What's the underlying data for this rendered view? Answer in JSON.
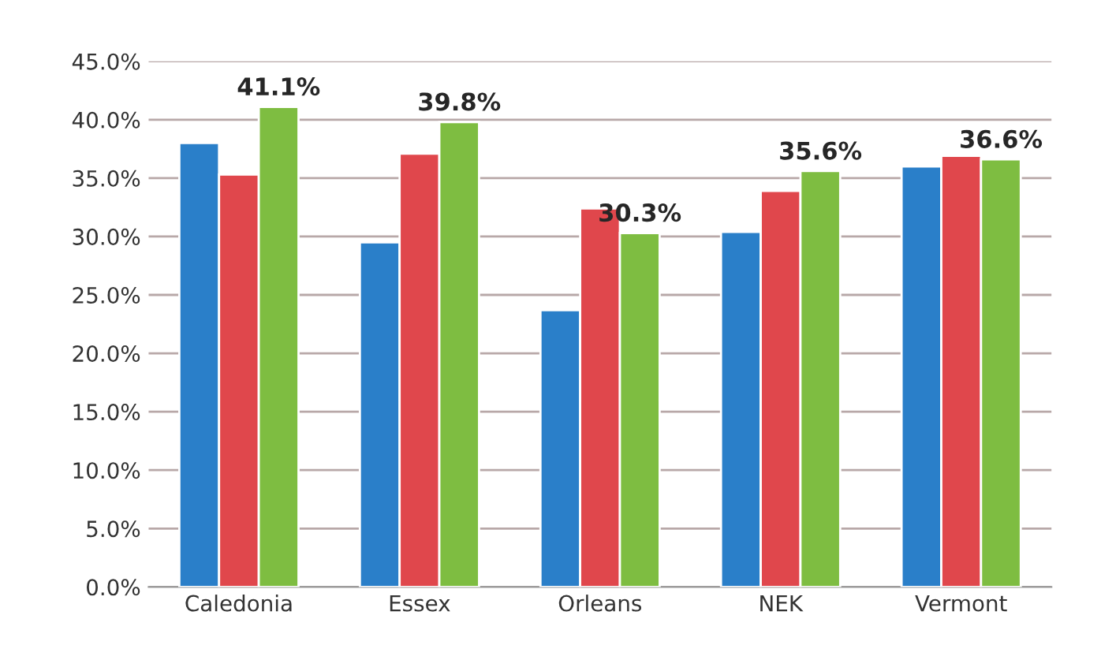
{
  "chart_data": {
    "type": "bar",
    "categories": [
      "Caledonia",
      "Essex",
      "Orleans",
      "NEK",
      "Vermont"
    ],
    "series": [
      {
        "color": "#2a7fc9",
        "values": [
          38.0,
          29.5,
          23.7,
          30.4,
          36.0
        ]
      },
      {
        "color": "#e0474c",
        "values": [
          35.3,
          37.1,
          32.4,
          33.9,
          36.9
        ]
      },
      {
        "color": "#7ebd41",
        "values": [
          41.1,
          39.8,
          30.3,
          35.6,
          36.6
        ],
        "value_labels": [
          "41.1%",
          "39.8%",
          "30.3%",
          "35.6%",
          "36.6%"
        ]
      }
    ],
    "ylim": [
      0,
      45
    ],
    "yticks": [
      {
        "value": 0,
        "label": "0.0%"
      },
      {
        "value": 5,
        "label": "5.0%"
      },
      {
        "value": 10,
        "label": "10.0%"
      },
      {
        "value": 15,
        "label": "15.0%"
      },
      {
        "value": 20,
        "label": "20.0%"
      },
      {
        "value": 25,
        "label": "25.0%"
      },
      {
        "value": 30,
        "label": "30.0%"
      },
      {
        "value": 35,
        "label": "35.0%"
      },
      {
        "value": 40,
        "label": "40.0%"
      },
      {
        "value": 45,
        "label": "45.0%"
      }
    ],
    "grid": "y",
    "legend": false
  }
}
